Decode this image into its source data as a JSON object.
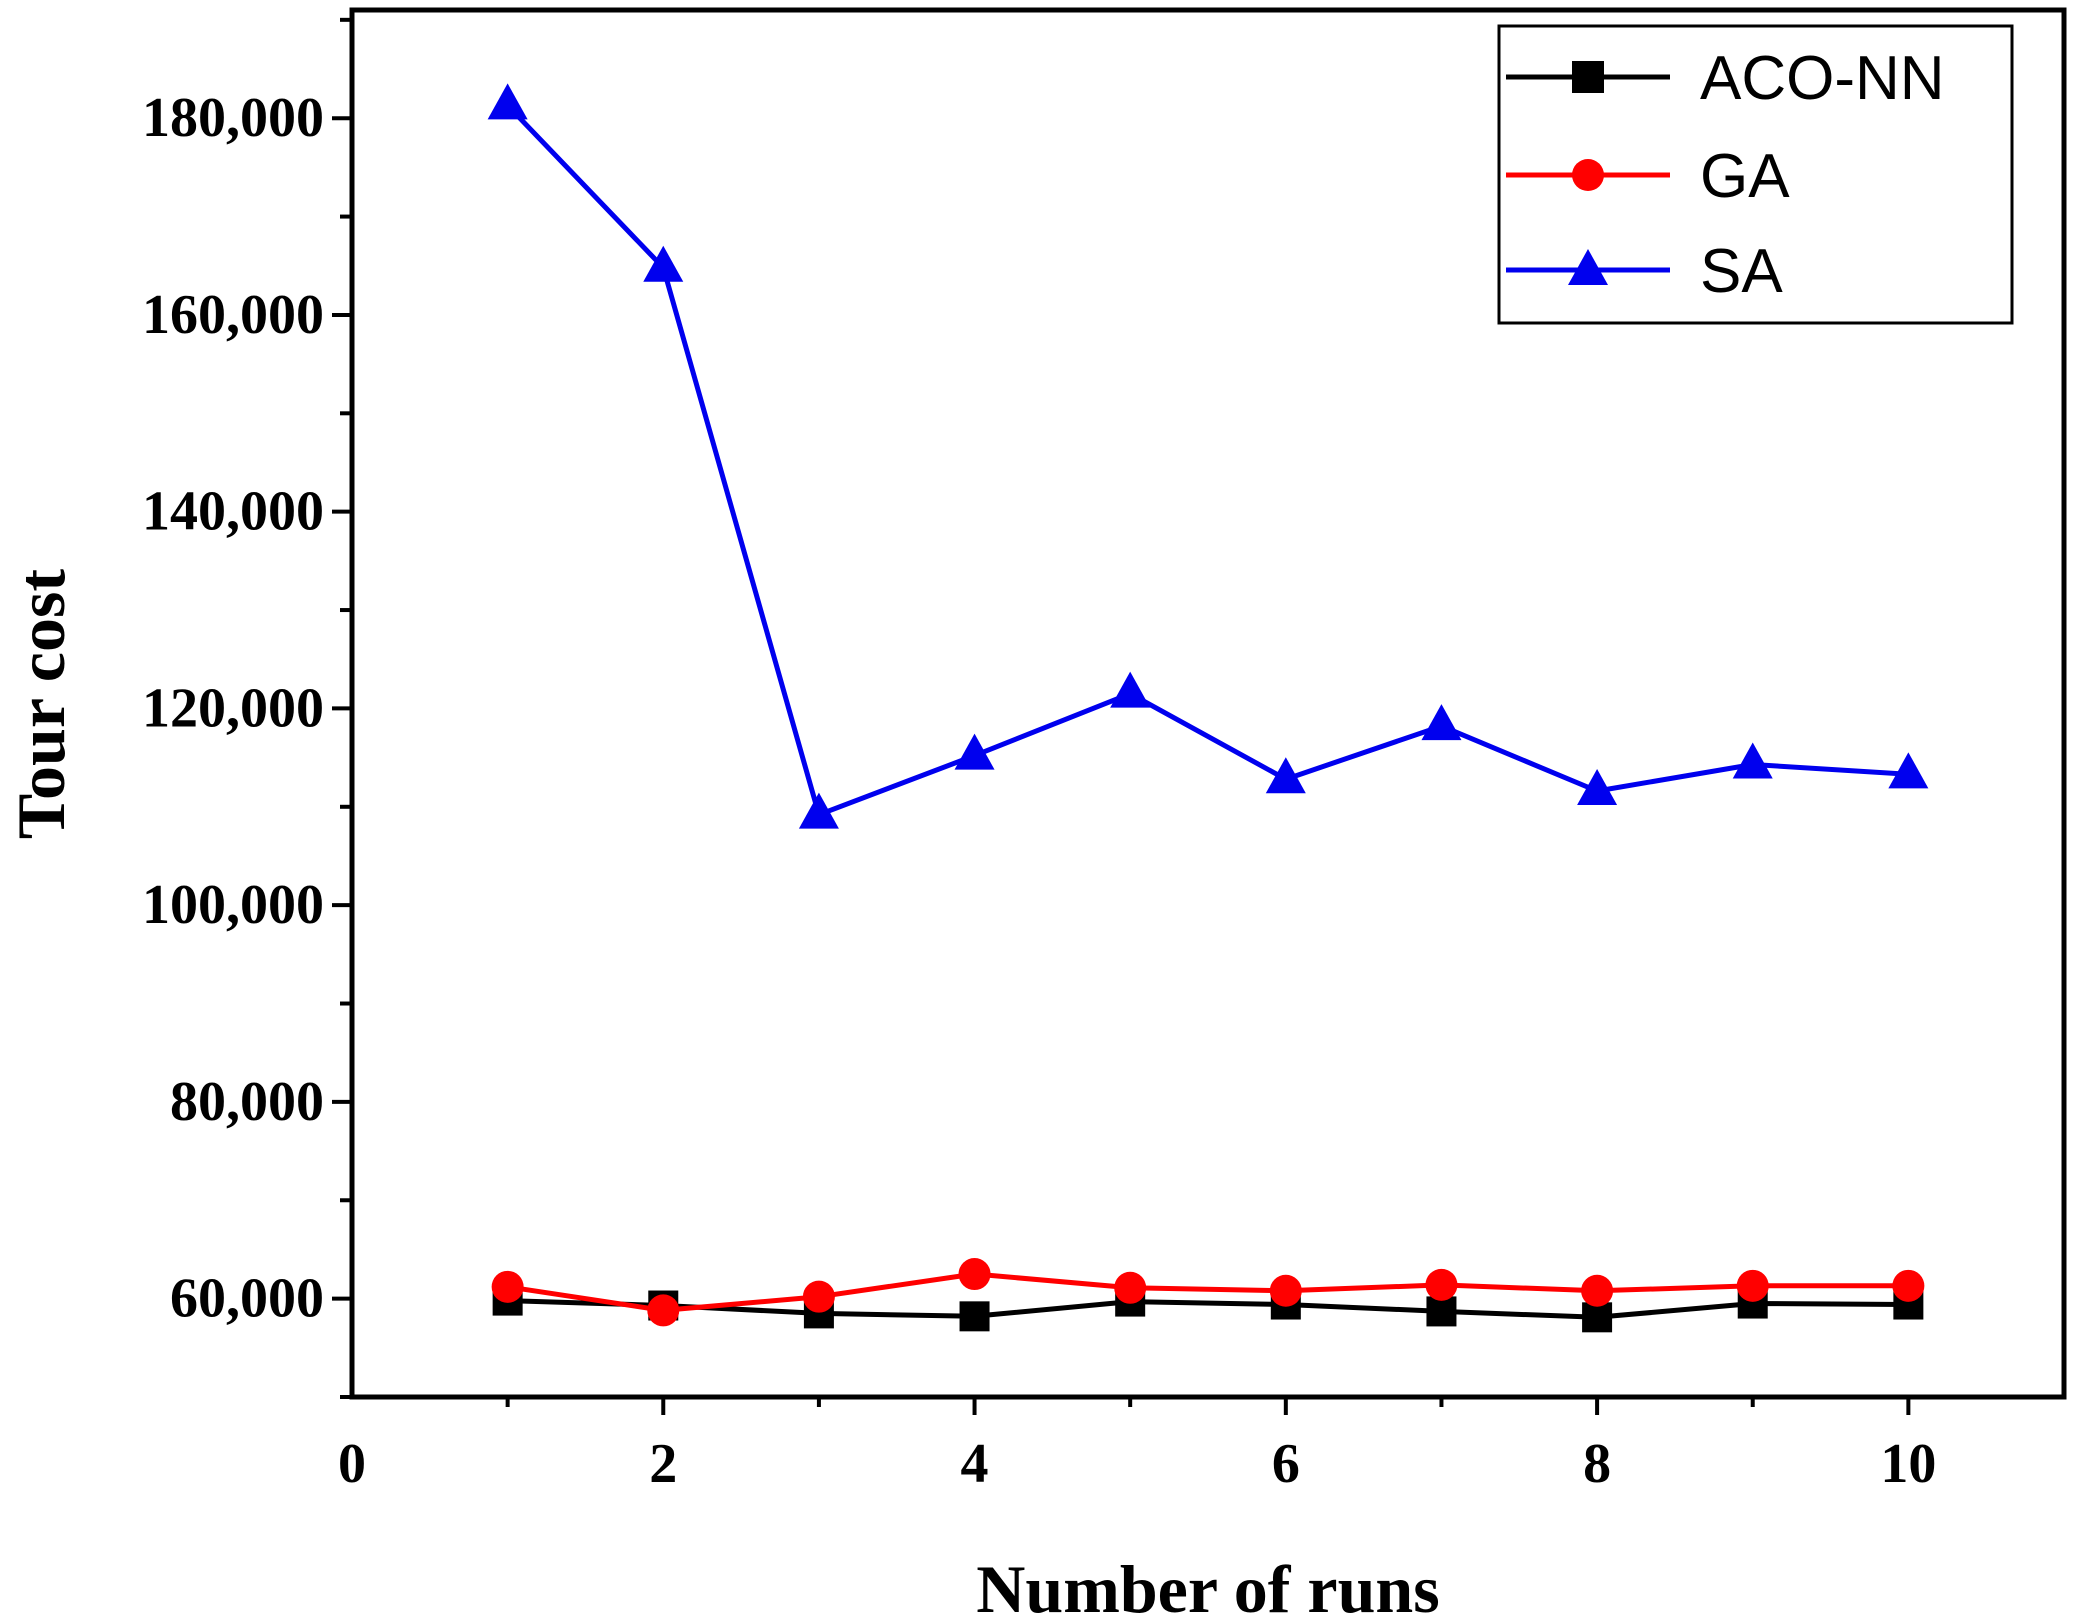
{
  "chart_data": {
    "type": "line",
    "title": "",
    "xlabel": "Number of runs",
    "ylabel": "Tour cost",
    "xlim": [
      0,
      11
    ],
    "ylim": [
      50000,
      191000
    ],
    "x_ticks": [
      0,
      2,
      4,
      6,
      8,
      10
    ],
    "x_tick_labels": [
      "0",
      "2",
      "4",
      "6",
      "8",
      "10"
    ],
    "y_ticks": [
      60000,
      80000,
      100000,
      120000,
      140000,
      160000,
      180000
    ],
    "y_tick_labels": [
      "60,000",
      "80,000",
      "100,000",
      "120,000",
      "140,000",
      "160,000",
      "180,000"
    ],
    "grid": false,
    "legend_position": "top-right",
    "x": [
      1,
      2,
      3,
      4,
      5,
      6,
      7,
      8,
      9,
      10
    ],
    "series": [
      {
        "name": "ACO-NN",
        "color": "#000000",
        "marker": "square",
        "values": [
          59800,
          59300,
          58500,
          58200,
          59700,
          59400,
          58700,
          58100,
          59500,
          59400
        ]
      },
      {
        "name": "GA",
        "color": "#ff0000",
        "marker": "circle",
        "values": [
          61200,
          58800,
          60200,
          62500,
          61100,
          60800,
          61400,
          60800,
          61300,
          61300
        ]
      },
      {
        "name": "SA",
        "color": "#0000ee",
        "marker": "triangle",
        "values": [
          181300,
          164800,
          109200,
          115200,
          121500,
          112800,
          118200,
          111600,
          114300,
          113300
        ]
      }
    ]
  }
}
